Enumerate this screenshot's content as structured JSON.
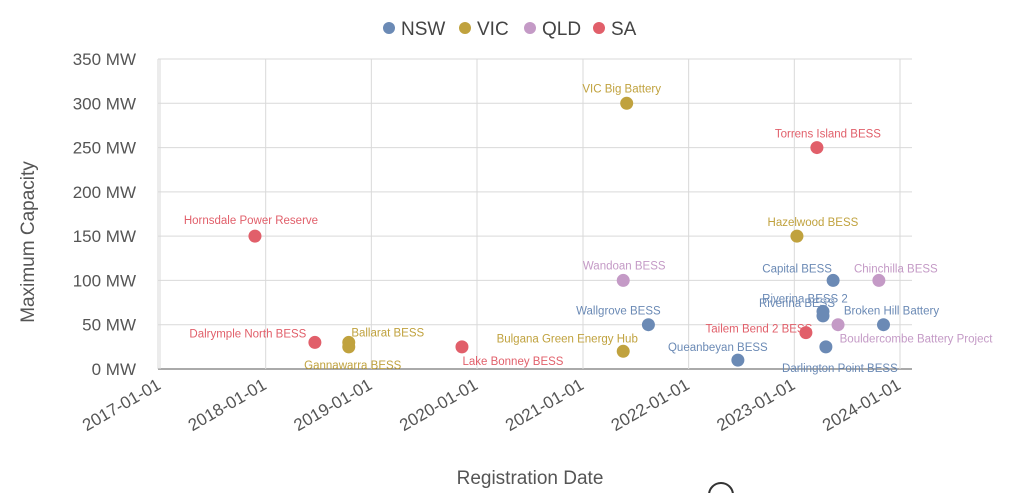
{
  "chart_data": {
    "type": "scatter",
    "xlabel": "Registration Date",
    "ylabel": "Maximum Capacity",
    "x_ticks": [
      "2017-01-01",
      "2018-01-01",
      "2019-01-01",
      "2020-01-01",
      "2021-01-01",
      "2022-01-01",
      "2023-01-01",
      "2024-01-01"
    ],
    "y_ticks": [
      "0 MW",
      "50 MW",
      "100 MW",
      "150 MW",
      "200 MW",
      "250 MW",
      "300 MW",
      "350 MW"
    ],
    "xlim": [
      "2017-01-01",
      "2024-01-01"
    ],
    "ylim": [
      0,
      350
    ],
    "grid": true,
    "legend_position": "top-center",
    "series": [
      {
        "name": "NSW",
        "color": "#6b8ab5",
        "points": [
          {
            "label": "Wallgrove BESS",
            "x": "2021-08-15",
            "y": 50
          },
          {
            "label": "Queanbeyan BESS",
            "x": "2022-06-20",
            "y": 10
          },
          {
            "label": "Capital BESS",
            "x": "2023-05-15",
            "y": 100
          },
          {
            "label": "Riverina BESS 2",
            "x": "2023-04-10",
            "y": 65
          },
          {
            "label": "Riverina BESS",
            "x": "2023-04-10",
            "y": 60
          },
          {
            "label": "Darlington Point BESS",
            "x": "2023-04-20",
            "y": 25
          },
          {
            "label": "Broken Hill Battery",
            "x": "2023-11-05",
            "y": 50
          }
        ]
      },
      {
        "name": "VIC",
        "color": "#c0a23e",
        "points": [
          {
            "label": "Ballarat BESS",
            "x": "2018-10-15",
            "y": 30
          },
          {
            "label": "Gannawarra BESS",
            "x": "2018-10-15",
            "y": 25
          },
          {
            "label": "VIC Big Battery",
            "x": "2021-06-01",
            "y": 300
          },
          {
            "label": "Bulgana Green Energy Hub",
            "x": "2021-05-20",
            "y": 20
          },
          {
            "label": "Hazelwood BESS",
            "x": "2023-01-10",
            "y": 150
          }
        ]
      },
      {
        "name": "QLD",
        "color": "#c49ac6",
        "points": [
          {
            "label": "Wandoan BESS",
            "x": "2021-05-20",
            "y": 100
          },
          {
            "label": "Chinchilla BESS",
            "x": "2023-10-20",
            "y": 100
          },
          {
            "label": "Bouldercombe Battery Project",
            "x": "2023-06-01",
            "y": 50
          }
        ]
      },
      {
        "name": "SA",
        "color": "#e15f6a",
        "points": [
          {
            "label": "Hornsdale Power Reserve",
            "x": "2017-11-25",
            "y": 150
          },
          {
            "label": "Dalrymple North BESS",
            "x": "2018-06-20",
            "y": 30
          },
          {
            "label": "Lake Bonney BESS",
            "x": "2019-11-10",
            "y": 25
          },
          {
            "label": "Torrens Island BESS",
            "x": "2023-03-20",
            "y": 250
          },
          {
            "label": "Tailem Bend 2 BESS",
            "x": "2023-02-10",
            "y": 41
          }
        ]
      }
    ]
  }
}
